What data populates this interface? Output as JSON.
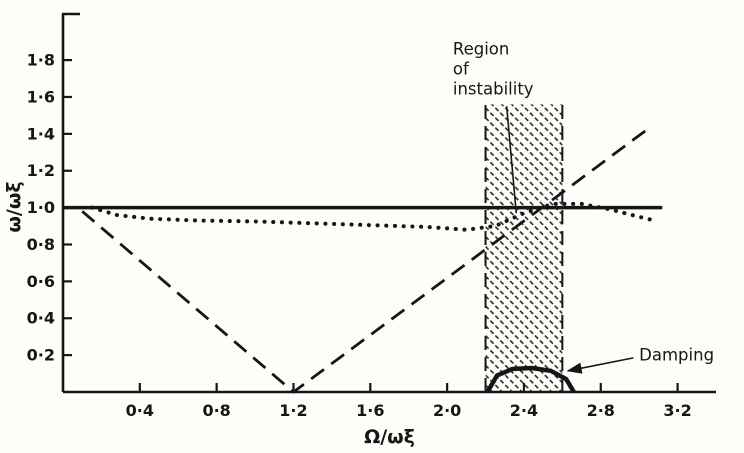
{
  "figure": {
    "background": "#fdfdfa",
    "ink": "#161616"
  },
  "chart_data": {
    "type": "line",
    "title": "",
    "xlabel": "Ω/ωξ",
    "ylabel": "ω/ωξ",
    "xlim": [
      0,
      3.4
    ],
    "ylim": [
      0,
      2.05
    ],
    "grid": false,
    "legend": "none",
    "x_ticks": {
      "values": [
        0.4,
        0.8,
        1.2,
        1.6,
        2.0,
        2.4,
        2.8,
        3.2
      ],
      "labels": [
        "0·4",
        "0·8",
        "1·2",
        "1·6",
        "2·0",
        "2·4",
        "2·8",
        "3·2"
      ]
    },
    "y_ticks": {
      "values": [
        0.2,
        0.4,
        0.6,
        0.8,
        1.0,
        1.2,
        1.4,
        1.6,
        1.8
      ],
      "labels": [
        "0·2",
        "0·4",
        "0·6",
        "0·8",
        "1·0",
        "1·2",
        "1·4",
        "1·6",
        "1·8"
      ]
    },
    "series": [
      {
        "name": "reference-line-unity",
        "style": "solid",
        "width": 3.5,
        "points": [
          [
            0.0,
            1.0
          ],
          [
            3.12,
            1.0
          ]
        ]
      },
      {
        "name": "dashed-branch",
        "style": "dashed",
        "width": 2.8,
        "points": [
          [
            0.1,
            0.98
          ],
          [
            1.2,
            0.0
          ],
          [
            3.05,
            1.43
          ]
        ]
      },
      {
        "name": "dotted-curve",
        "style": "dotted",
        "width": 4,
        "points": [
          [
            0.15,
            1.0
          ],
          [
            0.28,
            0.96
          ],
          [
            0.45,
            0.94
          ],
          [
            0.7,
            0.93
          ],
          [
            1.0,
            0.925
          ],
          [
            1.3,
            0.915
          ],
          [
            1.6,
            0.905
          ],
          [
            1.9,
            0.895
          ],
          [
            2.1,
            0.88
          ],
          [
            2.25,
            0.9
          ],
          [
            2.4,
            0.97
          ],
          [
            2.55,
            1.02
          ],
          [
            2.7,
            1.02
          ],
          [
            2.85,
            0.99
          ],
          [
            3.0,
            0.95
          ],
          [
            3.08,
            0.93
          ]
        ]
      },
      {
        "name": "damping-curve",
        "style": "solid",
        "width": 4.5,
        "points": [
          [
            2.21,
            0.0
          ],
          [
            2.26,
            0.09
          ],
          [
            2.34,
            0.125
          ],
          [
            2.44,
            0.13
          ],
          [
            2.54,
            0.115
          ],
          [
            2.62,
            0.07
          ],
          [
            2.66,
            0.0
          ]
        ]
      }
    ],
    "instability_band": {
      "x0": 2.2,
      "x1": 2.6,
      "y0": 0.0,
      "y1": 1.56
    },
    "annotations": [
      {
        "name": "region-of-instability-label",
        "lines": [
          "Region",
          "of",
          "instability"
        ],
        "x": 2.03,
        "y": 1.83,
        "leader": {
          "from": [
            2.31,
            1.55
          ],
          "to": [
            2.36,
            0.97
          ],
          "arrow": false
        }
      },
      {
        "name": "damping-label",
        "lines": [
          "Damping"
        ],
        "x": 3.0,
        "y": 0.17,
        "leader": {
          "from": [
            2.97,
            0.185
          ],
          "to": [
            2.63,
            0.115
          ],
          "arrow": true
        }
      }
    ]
  }
}
